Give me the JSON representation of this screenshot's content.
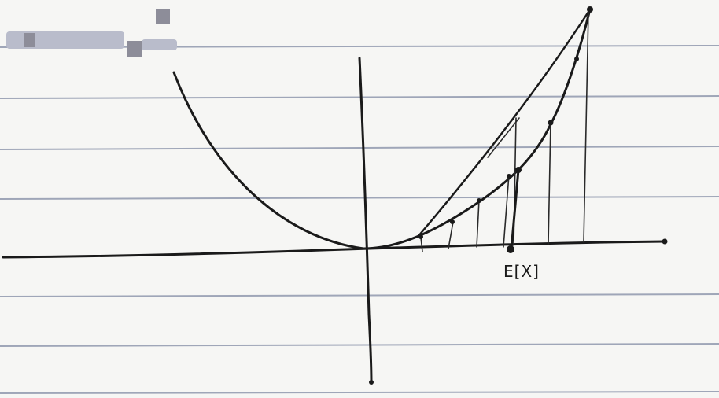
{
  "diagram": {
    "x_label": "E[X]",
    "colors": {
      "ink": "#1a1a1a",
      "ruled_lines": "#9fa6b8",
      "paper": "#f6f6f4"
    }
  }
}
